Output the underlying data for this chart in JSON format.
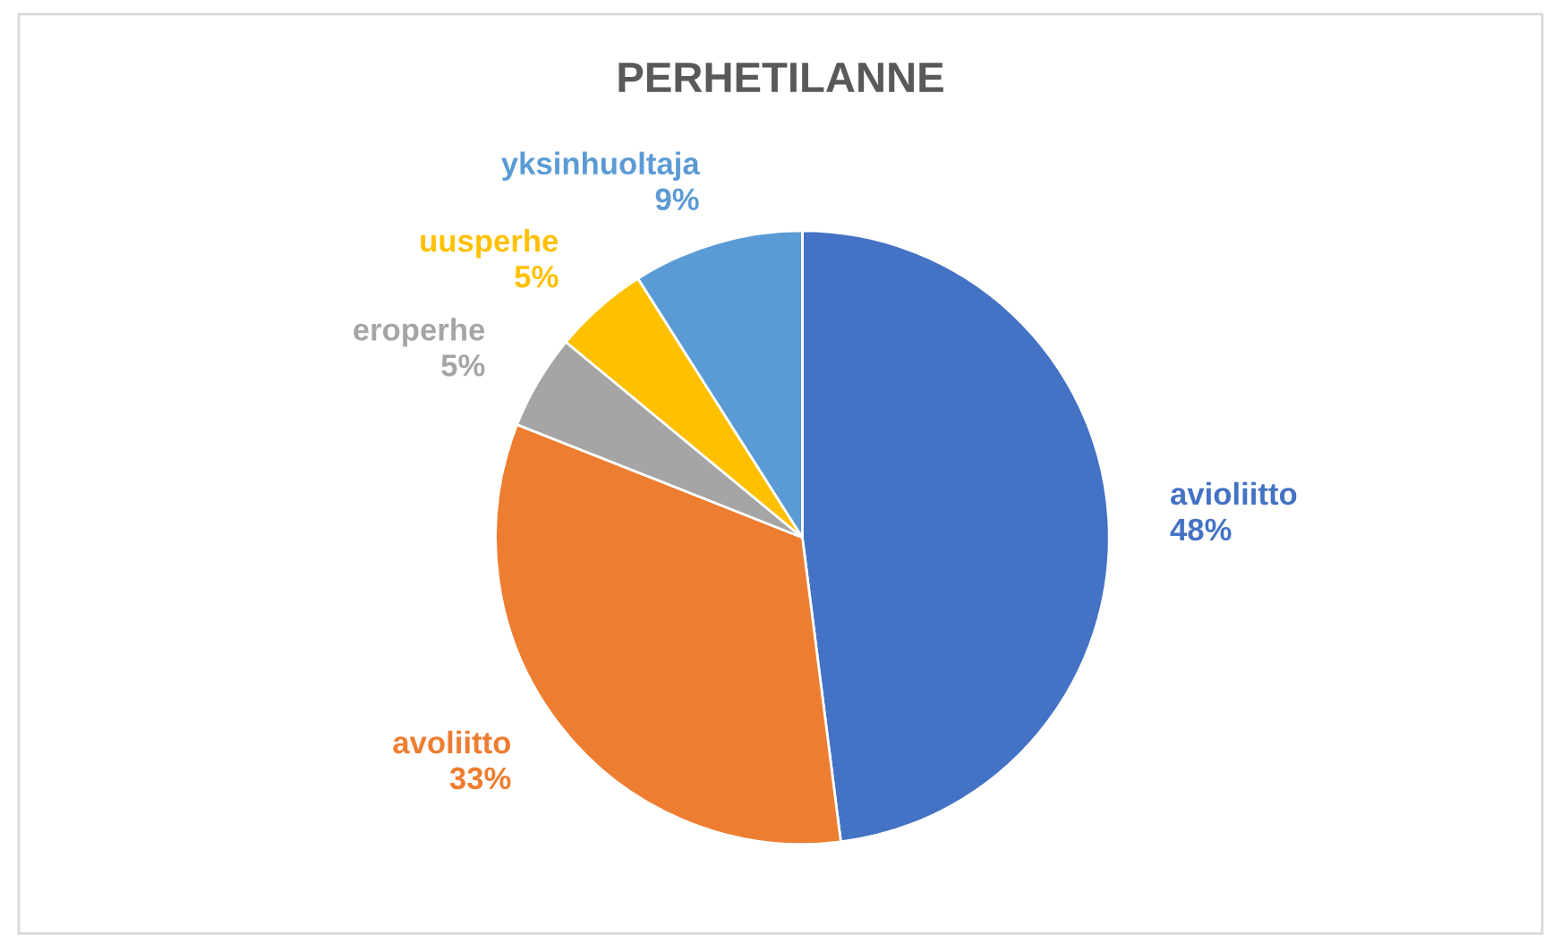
{
  "chart_data": {
    "type": "pie",
    "title": "PERHETILANNE",
    "categories": [
      "avioliitto",
      "avoliitto",
      "eroperhe",
      "uusperhe",
      "yksinhuoltaja"
    ],
    "values": [
      48,
      33,
      5,
      5,
      9
    ],
    "value_labels": [
      "48%",
      "33%",
      "5%",
      "5%",
      "9%"
    ],
    "colors": [
      "#4472c4",
      "#ed7d31",
      "#a5a5a5",
      "#ffc000",
      "#5b9bd5"
    ],
    "legend": false
  }
}
